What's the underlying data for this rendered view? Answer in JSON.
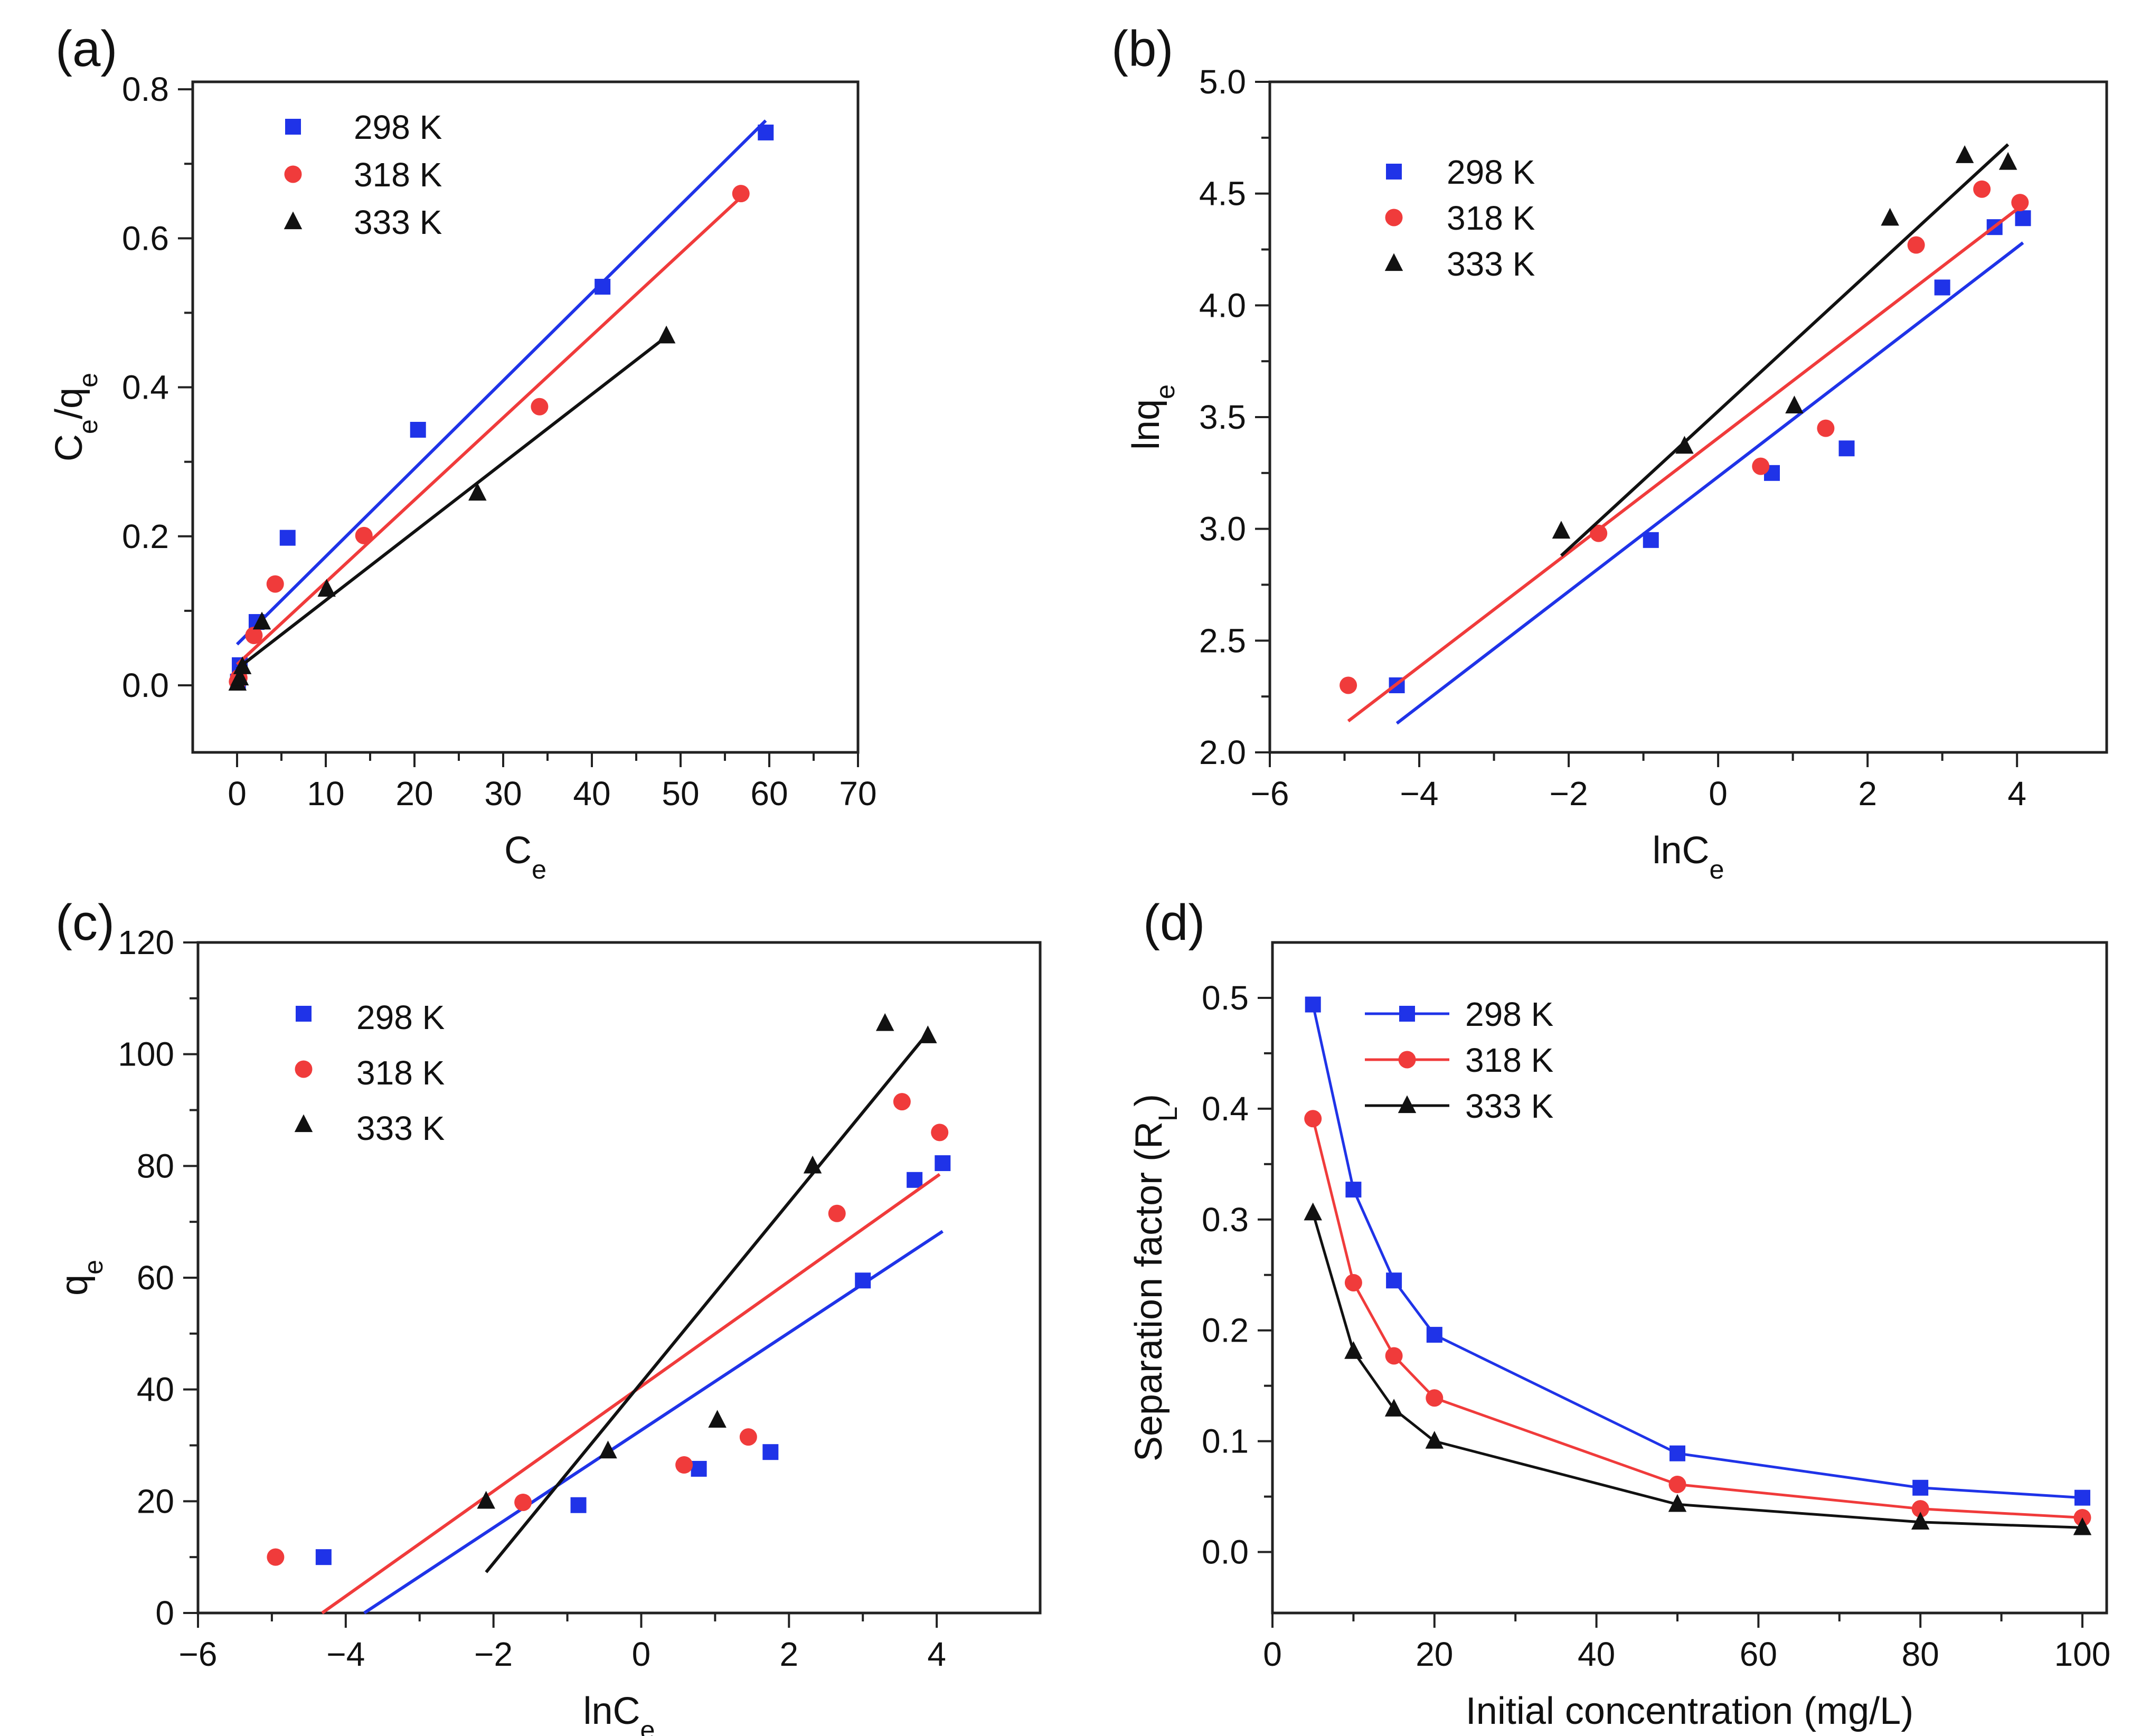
{
  "colors": {
    "298 K": "#1f33e8",
    "318 K": "#f03b3b",
    "333 K": "#111111"
  },
  "chart_data": [
    {
      "panel": "(a)",
      "type": "scatter",
      "xlabel": "C",
      "xlabel_sub": "e",
      "ylabel": "C",
      "ylabel_sub": "e",
      "ylabel_mid": "/q",
      "ylabel_sub2": "e",
      "xlim": [
        -5,
        70
      ],
      "ylim": [
        -0.09,
        0.81
      ],
      "xticks": [
        0,
        10,
        20,
        30,
        40,
        50,
        60,
        70
      ],
      "xtick_labels": [
        "0",
        "10",
        "20",
        "30",
        "40",
        "50",
        "60",
        "70"
      ],
      "yticks": [
        0,
        0.2,
        0.4,
        0.6,
        0.8
      ],
      "ytick_labels": [
        "0.0",
        "0.2",
        "0.4",
        "0.6",
        "0.8"
      ],
      "legend": "top-left",
      "series": [
        {
          "name": "298 K",
          "marker": "square",
          "x": [
            0.1,
            0.3,
            2.2,
            5.7,
            20.4,
            41.2,
            59.6
          ],
          "y": [
            0.005,
            0.027,
            0.085,
            0.198,
            0.343,
            0.535,
            0.742
          ],
          "fit": [
            [
              0,
              0.055
            ],
            [
              59.6,
              0.758
            ]
          ]
        },
        {
          "name": "318 K",
          "marker": "circle",
          "x": [
            0.05,
            0.2,
            1.9,
            4.3,
            14.3,
            34.1,
            56.8
          ],
          "y": [
            0.005,
            0.01,
            0.067,
            0.136,
            0.201,
            0.374,
            0.66
          ],
          "fit": [
            [
              0,
              0.028
            ],
            [
              56.8,
              0.655
            ]
          ]
        },
        {
          "name": "333 K",
          "marker": "triangle",
          "x": [
            0.05,
            0.3,
            0.6,
            2.8,
            10.1,
            27.1,
            48.4
          ],
          "y": [
            0.003,
            0.01,
            0.025,
            0.085,
            0.129,
            0.258,
            0.469
          ],
          "fit": [
            [
              0,
              0.022
            ],
            [
              48.4,
              0.468
            ]
          ]
        }
      ]
    },
    {
      "panel": "(b)",
      "type": "scatter",
      "xlabel": "lnC",
      "xlabel_sub": "e",
      "ylabel": "lnq",
      "ylabel_sub": "e",
      "xlim": [
        -6,
        5.2
      ],
      "ylim": [
        2.0,
        5.0
      ],
      "xticks": [
        -6,
        -4,
        -2,
        0,
        2,
        4
      ],
      "xtick_labels": [
        "−6",
        "−4",
        "−2",
        "0",
        "2",
        "4"
      ],
      "yticks": [
        2.0,
        2.5,
        3.0,
        3.5,
        4.0,
        4.5,
        5.0
      ],
      "ytick_labels": [
        "2.0",
        "2.5",
        "3.0",
        "3.5",
        "4.0",
        "4.5",
        "5.0"
      ],
      "legend": "top-left",
      "series": [
        {
          "name": "298 K",
          "marker": "square",
          "x": [
            -4.3,
            -0.9,
            0.72,
            1.72,
            3.0,
            3.7,
            4.08
          ],
          "y": [
            2.3,
            2.95,
            3.25,
            3.36,
            4.08,
            4.35,
            4.39
          ],
          "fit": [
            [
              -4.3,
              2.13
            ],
            [
              4.08,
              4.28
            ]
          ]
        },
        {
          "name": "318 K",
          "marker": "circle",
          "x": [
            -4.95,
            -1.6,
            0.57,
            1.44,
            2.65,
            3.53,
            4.04
          ],
          "y": [
            2.3,
            2.98,
            3.28,
            3.45,
            4.27,
            4.52,
            4.46
          ],
          "fit": [
            [
              -4.95,
              2.14
            ],
            [
              4.04,
              4.44
            ]
          ]
        },
        {
          "name": "333 K",
          "marker": "triangle",
          "x": [
            -2.1,
            -0.45,
            1.02,
            2.3,
            3.3,
            3.88
          ],
          "y": [
            2.99,
            3.37,
            3.55,
            4.39,
            4.67,
            4.64
          ],
          "fit": [
            [
              -2.1,
              2.88
            ],
            [
              3.88,
              4.72
            ]
          ]
        }
      ]
    },
    {
      "panel": "(c)",
      "type": "scatter",
      "xlabel": "lnC",
      "xlabel_sub": "e",
      "ylabel": "q",
      "ylabel_sub": "e",
      "xlim": [
        -6,
        5.4
      ],
      "ylim": [
        0,
        120
      ],
      "xticks": [
        -6,
        -4,
        -2,
        0,
        2,
        4
      ],
      "xtick_labels": [
        "−6",
        "−4",
        "−2",
        "0",
        "2",
        "4"
      ],
      "yticks": [
        0,
        20,
        40,
        60,
        80,
        100,
        120
      ],
      "ytick_labels": [
        "0",
        "20",
        "40",
        "60",
        "80",
        "100",
        "120"
      ],
      "legend": "top-left",
      "series": [
        {
          "name": "298 K",
          "marker": "square",
          "x": [
            -4.3,
            -0.85,
            0.78,
            1.75,
            3.0,
            3.7,
            4.08
          ],
          "y": [
            10,
            19.3,
            25.8,
            28.8,
            59.5,
            77.5,
            80.5
          ],
          "fit": [
            [
              -3.75,
              0
            ],
            [
              4.08,
              68.3
            ]
          ]
        },
        {
          "name": "318 K",
          "marker": "circle",
          "x": [
            -4.95,
            -1.6,
            0.58,
            1.45,
            2.65,
            3.53,
            4.04
          ],
          "y": [
            10,
            19.8,
            26.5,
            31.5,
            71.5,
            91.5,
            86
          ],
          "fit": [
            [
              -4.32,
              0
            ],
            [
              4.04,
              78.5
            ]
          ]
        },
        {
          "name": "333 K",
          "marker": "triangle",
          "x": [
            -2.1,
            -0.45,
            1.03,
            2.32,
            3.3,
            3.88
          ],
          "y": [
            20,
            29,
            34.5,
            80,
            105.5,
            103.3
          ],
          "fit": [
            [
              -2.1,
              7.3
            ],
            [
              3.88,
              103.8
            ]
          ]
        }
      ]
    },
    {
      "panel": "(d)",
      "type": "line",
      "xlabel": "Initial concentration (mg/L)",
      "ylabel": "Separation factor (R",
      "ylabel_sub": "L",
      "ylabel_end": ")",
      "xlim": [
        0,
        103
      ],
      "ylim": [
        -0.055,
        0.55
      ],
      "xticks": [
        0,
        20,
        40,
        60,
        80,
        100
      ],
      "xtick_labels": [
        "0",
        "20",
        "40",
        "60",
        "80",
        "100"
      ],
      "yticks": [
        0,
        0.1,
        0.2,
        0.3,
        0.4,
        0.5
      ],
      "ytick_labels": [
        "0.0",
        "0.1",
        "0.2",
        "0.3",
        "0.4",
        "0.5"
      ],
      "legend": "top-left",
      "series": [
        {
          "name": "298 K",
          "marker": "square",
          "x": [
            5,
            10,
            15,
            20,
            50,
            80,
            100
          ],
          "y": [
            0.494,
            0.327,
            0.245,
            0.196,
            0.089,
            0.058,
            0.049
          ]
        },
        {
          "name": "318 K",
          "marker": "circle",
          "x": [
            5,
            10,
            15,
            20,
            50,
            80,
            100
          ],
          "y": [
            0.391,
            0.243,
            0.177,
            0.139,
            0.061,
            0.039,
            0.031
          ]
        },
        {
          "name": "333 K",
          "marker": "triangle",
          "x": [
            5,
            10,
            15,
            20,
            50,
            80,
            100
          ],
          "y": [
            0.306,
            0.181,
            0.129,
            0.1,
            0.043,
            0.027,
            0.022
          ]
        }
      ]
    }
  ]
}
